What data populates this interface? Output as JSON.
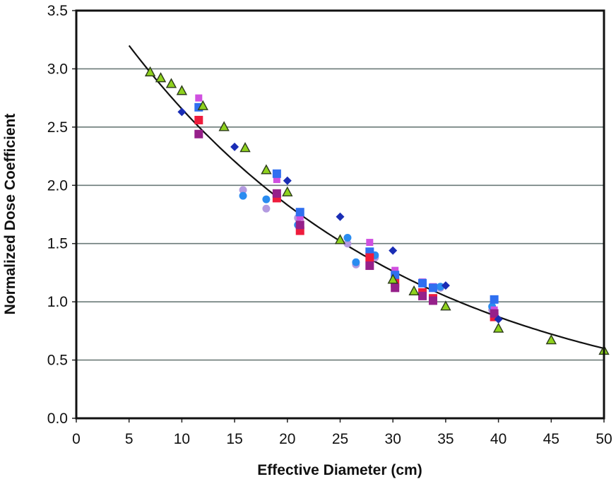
{
  "chart_data": {
    "type": "scatter",
    "title": "",
    "xlabel": "Effective Diameter (cm)",
    "ylabel": "Normalized Dose Coefficient",
    "xlim": [
      0,
      50
    ],
    "ylim": [
      0,
      3.5
    ],
    "xticks": [
      0,
      5,
      10,
      15,
      20,
      25,
      30,
      35,
      40,
      45,
      50
    ],
    "xtick_labels": [
      "0",
      "5",
      "10",
      "15",
      "20",
      "25",
      "30",
      "35",
      "40",
      "45",
      "50"
    ],
    "yticks": [
      0,
      0.5,
      1.0,
      1.5,
      2.0,
      2.5,
      3.0,
      3.5
    ],
    "ytick_labels": [
      "0.0",
      "0.5",
      "1.0",
      "1.5",
      "2.0",
      "2.5",
      "3.0",
      "3.5"
    ],
    "grid": "horizontal",
    "legend": "none",
    "fit_curve": {
      "type": "exponential",
      "equation": "y = 3.854 * exp(-0.0372 * x)",
      "a": 3.854,
      "b": 0.0372,
      "x_range": [
        5,
        50
      ],
      "color": "#111111"
    },
    "series": [
      {
        "name": "dark-blue-diamonds",
        "marker": "diamond",
        "color": "#1a2db5",
        "points": [
          [
            10,
            2.63
          ],
          [
            15,
            2.33
          ],
          [
            20,
            2.04
          ],
          [
            25,
            1.73
          ],
          [
            30,
            1.44
          ],
          [
            35,
            1.14
          ],
          [
            40,
            0.85
          ]
        ]
      },
      {
        "name": "green-triangles",
        "marker": "triangle",
        "color": "#8fd21e",
        "points": [
          [
            7,
            2.97
          ],
          [
            8,
            2.92
          ],
          [
            9,
            2.87
          ],
          [
            10,
            2.81
          ],
          [
            12,
            2.68
          ],
          [
            14,
            2.5
          ],
          [
            16,
            2.32
          ],
          [
            18,
            2.13
          ],
          [
            20,
            1.94
          ],
          [
            25,
            1.53
          ],
          [
            30,
            1.19
          ],
          [
            32,
            1.09
          ],
          [
            35,
            0.96
          ],
          [
            40,
            0.77
          ],
          [
            45,
            0.67
          ],
          [
            50,
            0.58
          ]
        ]
      },
      {
        "name": "magenta-squares",
        "marker": "small-square",
        "color": "#d050e0",
        "points": [
          [
            11.6,
            2.75
          ],
          [
            19,
            2.05
          ],
          [
            21.2,
            1.73
          ],
          [
            27.8,
            1.51
          ],
          [
            30.2,
            1.27
          ],
          [
            32.8,
            1.17
          ],
          [
            33.8,
            1.13
          ],
          [
            39.6,
            0.93
          ]
        ]
      },
      {
        "name": "blue-squares",
        "marker": "square",
        "color": "#2f6ff0",
        "points": [
          [
            11.6,
            2.67
          ],
          [
            19,
            2.1
          ],
          [
            21.2,
            1.77
          ],
          [
            27.8,
            1.43
          ],
          [
            30.2,
            1.23
          ],
          [
            32.8,
            1.16
          ],
          [
            33.8,
            1.12
          ],
          [
            39.6,
            1.02
          ]
        ]
      },
      {
        "name": "red-squares",
        "marker": "square",
        "color": "#ee1c3c",
        "points": [
          [
            11.6,
            2.56
          ],
          [
            19,
            1.89
          ],
          [
            21.2,
            1.61
          ],
          [
            27.8,
            1.38
          ],
          [
            30.2,
            1.16
          ],
          [
            32.8,
            1.08
          ],
          [
            33.8,
            1.03
          ],
          [
            39.6,
            0.87
          ]
        ]
      },
      {
        "name": "purple-squares",
        "marker": "square",
        "color": "#96208a",
        "points": [
          [
            11.6,
            2.44
          ],
          [
            19,
            1.93
          ],
          [
            21.2,
            1.66
          ],
          [
            27.8,
            1.31
          ],
          [
            30.2,
            1.12
          ],
          [
            32.8,
            1.05
          ],
          [
            33.8,
            1.01
          ],
          [
            39.6,
            0.9
          ]
        ]
      },
      {
        "name": "blue-circles",
        "marker": "circle",
        "color": "#2a8cf0",
        "points": [
          [
            15.8,
            1.91
          ],
          [
            18,
            1.88
          ],
          [
            21,
            1.66
          ],
          [
            25.7,
            1.55
          ],
          [
            26.5,
            1.34
          ],
          [
            28.3,
            1.4
          ],
          [
            34.5,
            1.13
          ],
          [
            39.4,
            0.96
          ]
        ]
      },
      {
        "name": "lavender-circles",
        "marker": "circle",
        "color": "#b39ae0",
        "points": [
          [
            15.8,
            1.96
          ],
          [
            18,
            1.8
          ],
          [
            21,
            1.72
          ],
          [
            25.7,
            1.5
          ],
          [
            26.5,
            1.32
          ],
          [
            28.3,
            1.38
          ],
          [
            34.5,
            1.12
          ],
          [
            39.4,
            0.93
          ]
        ]
      }
    ]
  }
}
